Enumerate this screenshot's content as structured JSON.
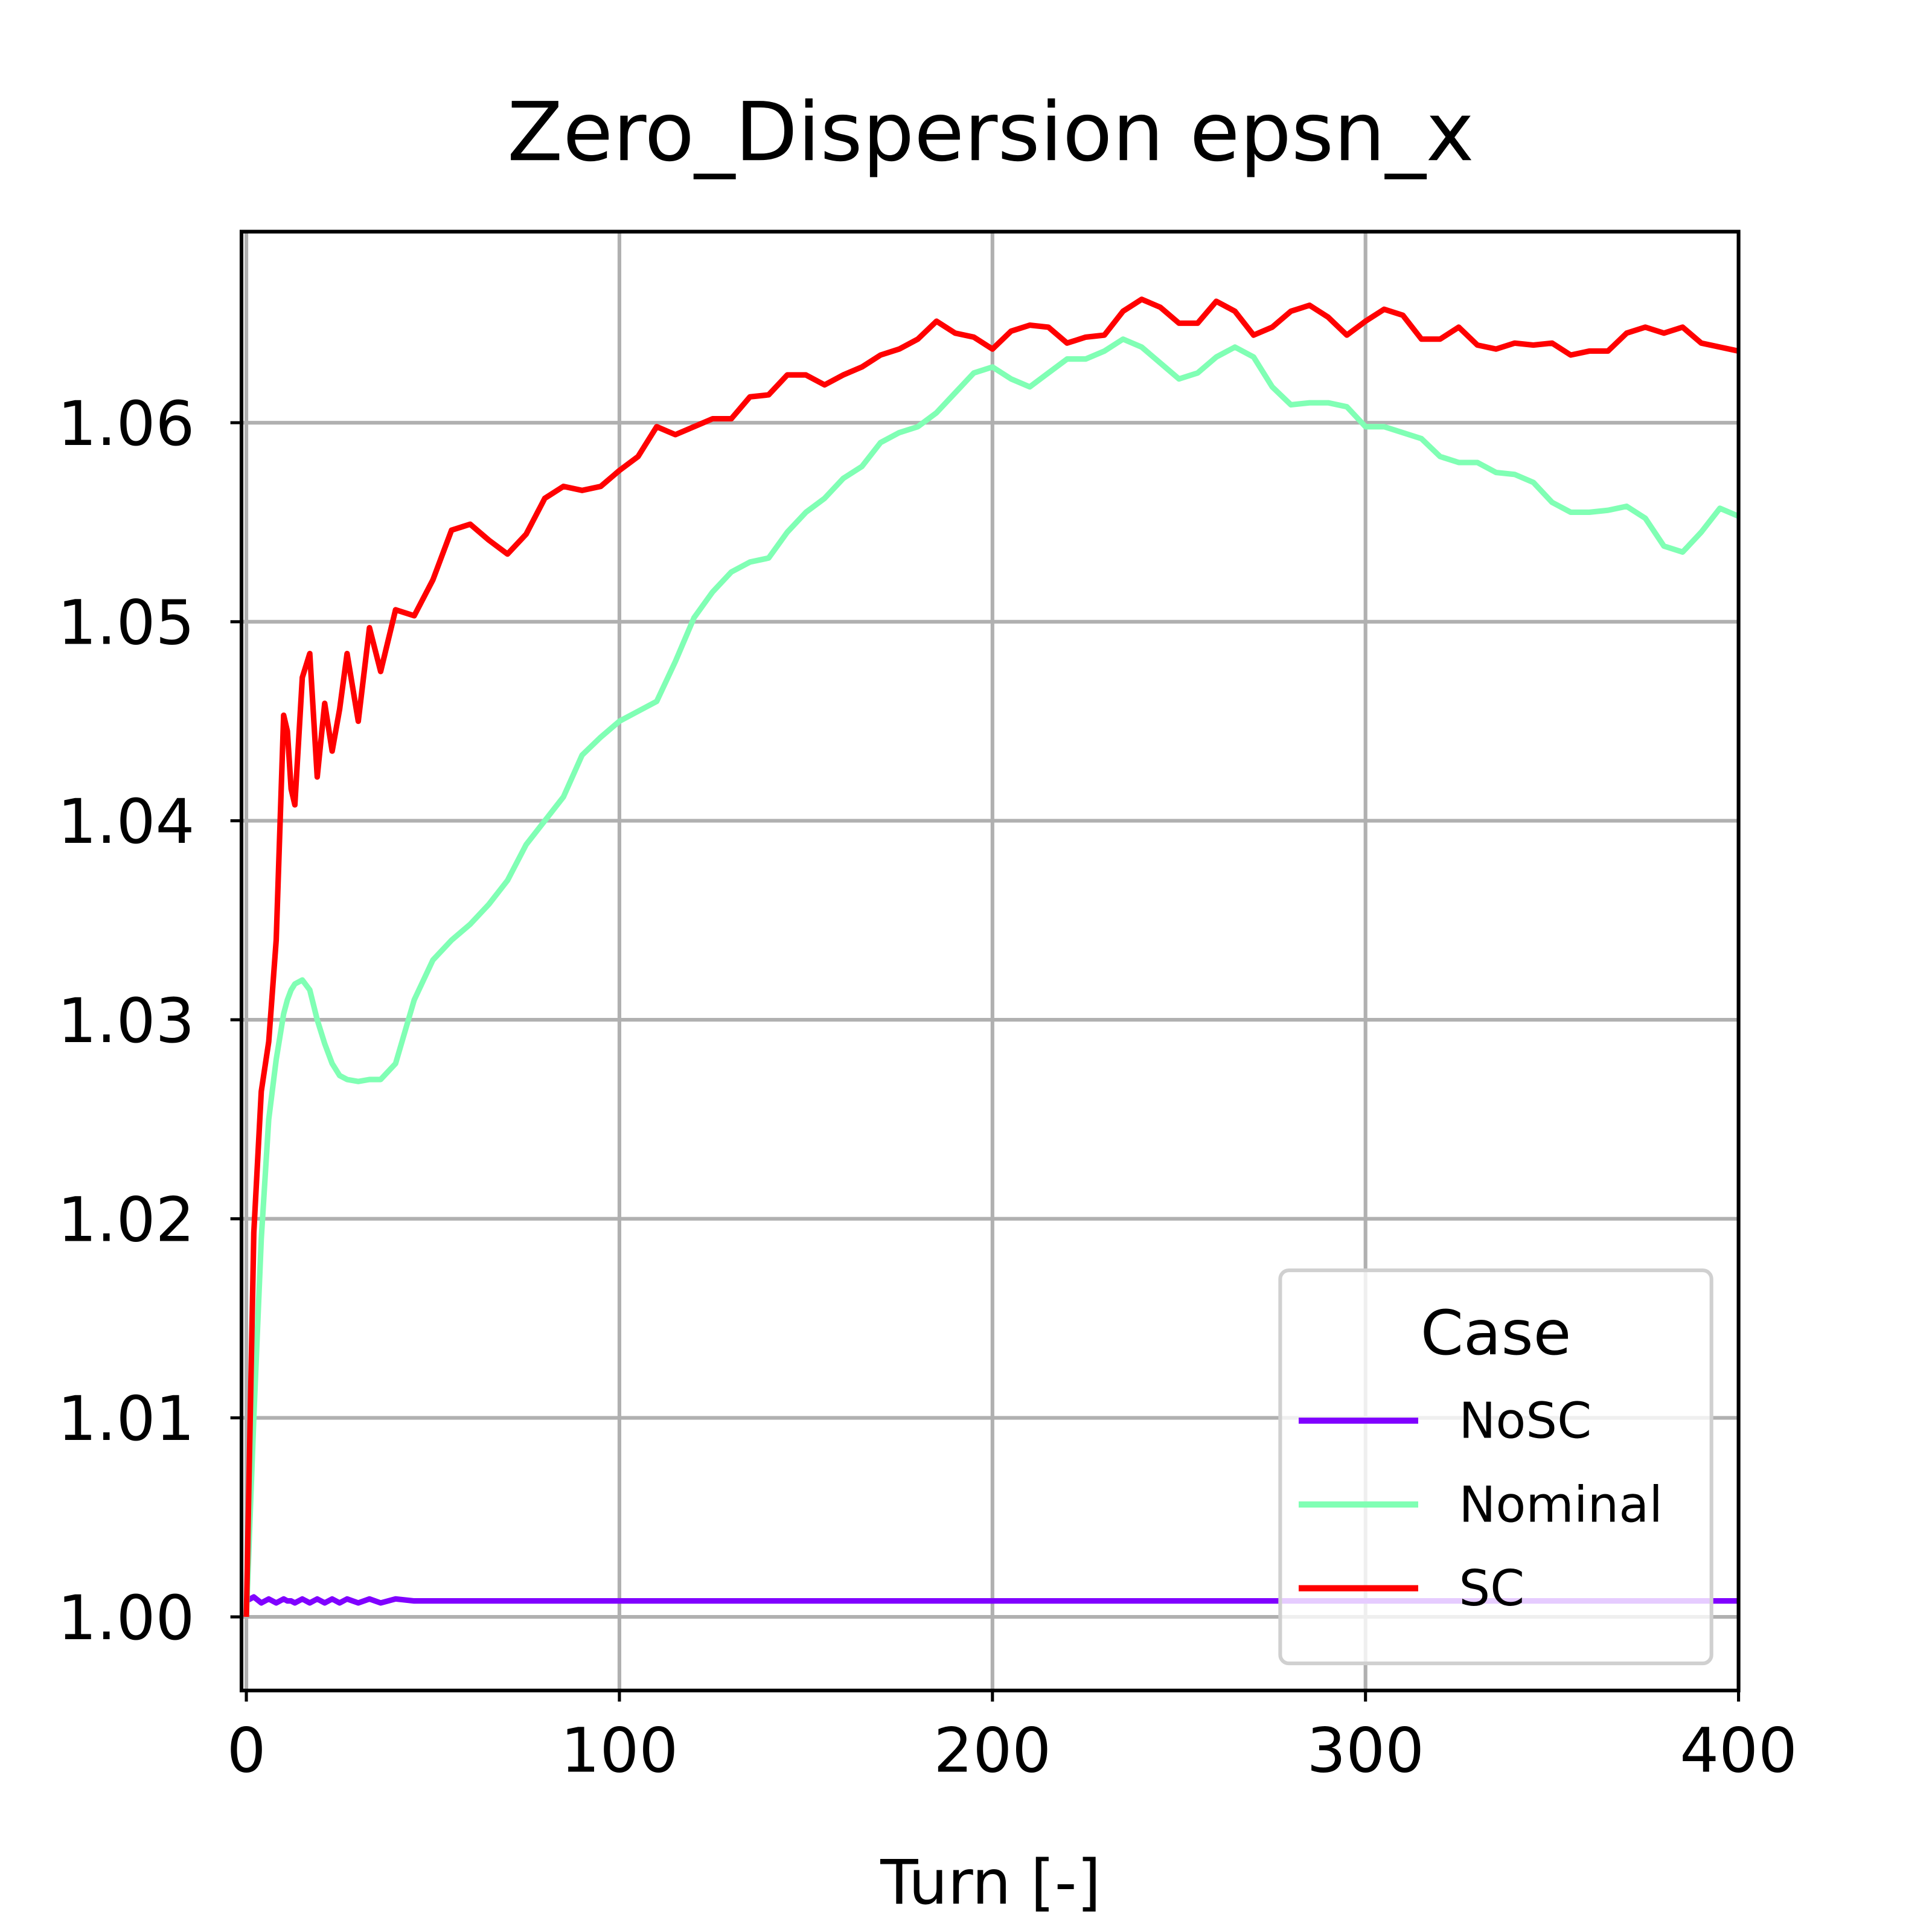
{
  "chart_data": {
    "type": "line",
    "title": "Zero_Dispersion  epsn_x",
    "x_label": "Turn [-]",
    "xlim": [
      -1.3,
      400
    ],
    "ylim": [
      0.9963,
      1.0696
    ],
    "xticks": [
      0,
      100,
      200,
      300,
      400
    ],
    "yticks": [
      {
        "value": 1,
        "label": "1.00"
      },
      1.01,
      1.02,
      1.03,
      1.04,
      1.05,
      1.06
    ],
    "grid": true,
    "legend_title": "Case",
    "legend_loc": "lower right",
    "x": [
      0,
      2,
      4,
      6,
      8,
      10,
      11,
      12,
      13,
      15,
      17,
      19,
      21,
      23,
      25,
      27,
      30,
      33,
      36,
      40,
      45,
      50,
      55,
      60,
      65,
      70,
      75,
      80,
      85,
      90,
      95,
      100,
      105,
      110,
      115,
      120,
      125,
      130,
      135,
      140,
      145,
      150,
      155,
      160,
      165,
      170,
      175,
      180,
      185,
      190,
      195,
      200,
      205,
      210,
      215,
      220,
      225,
      230,
      235,
      240,
      245,
      250,
      255,
      260,
      265,
      270,
      275,
      280,
      285,
      290,
      295,
      300,
      305,
      310,
      315,
      320,
      325,
      330,
      335,
      340,
      345,
      350,
      355,
      360,
      365,
      370,
      375,
      380,
      385,
      390,
      395,
      400
    ],
    "series": [
      {
        "name": "NoSC",
        "color": "#8000ff",
        "values": [
          1.0008,
          1.001,
          1.0007,
          1.0009,
          1.0007,
          1.0009,
          1.0008,
          1.0008,
          1.0007,
          1.0009,
          1.0007,
          1.0009,
          1.0007,
          1.0009,
          1.0007,
          1.0009,
          1.0007,
          1.0009,
          1.0007,
          1.0009,
          1.0008,
          1.0008,
          1.0008,
          1.0008,
          1.0008,
          1.0008,
          1.0008,
          1.0008,
          1.0008,
          1.0008,
          1.0008,
          1.0008,
          1.0008,
          1.0008,
          1.0008,
          1.0008,
          1.0008,
          1.0008,
          1.0008,
          1.0008,
          1.0008,
          1.0008,
          1.0008,
          1.0008,
          1.0008,
          1.0008,
          1.0008,
          1.0008,
          1.0008,
          1.0008,
          1.0008,
          1.0008,
          1.0008,
          1.0008,
          1.0008,
          1.0008,
          1.0008,
          1.0008,
          1.0008,
          1.0008,
          1.0008,
          1.0008,
          1.0008,
          1.0008,
          1.0008,
          1.0008,
          1.0008,
          1.0008,
          1.0008,
          1.0008,
          1.0008,
          1.0008,
          1.0008,
          1.0008,
          1.0008,
          1.0008,
          1.0008,
          1.0008,
          1.0008,
          1.0008,
          1.0008,
          1.0008,
          1.0008,
          1.0008,
          1.0008,
          1.0008,
          1.0008,
          1.0008,
          1.0008,
          1.0008,
          1.0008,
          1.0008
        ]
      },
      {
        "name": "Nominal",
        "color": "#80ffb4",
        "values": [
          1.0,
          1.01,
          1.019,
          1.025,
          1.028,
          1.0303,
          1.031,
          1.0315,
          1.0318,
          1.032,
          1.0315,
          1.03,
          1.0288,
          1.0278,
          1.0272,
          1.027,
          1.0269,
          1.027,
          1.027,
          1.0278,
          1.031,
          1.033,
          1.034,
          1.0348,
          1.0358,
          1.037,
          1.0388,
          1.04,
          1.0412,
          1.0433,
          1.0442,
          1.045,
          1.0455,
          1.046,
          1.048,
          1.0502,
          1.0515,
          1.0525,
          1.053,
          1.0532,
          1.0545,
          1.0555,
          1.0562,
          1.0572,
          1.0578,
          1.059,
          1.0595,
          1.0598,
          1.0605,
          1.0615,
          1.0625,
          1.0628,
          1.0622,
          1.0618,
          1.0625,
          1.0632,
          1.0632,
          1.0636,
          1.0642,
          1.0638,
          1.063,
          1.0622,
          1.0625,
          1.0633,
          1.0638,
          1.0633,
          1.0618,
          1.0609,
          1.061,
          1.061,
          1.0608,
          1.0598,
          1.0598,
          1.0595,
          1.0592,
          1.0583,
          1.058,
          1.058,
          1.0575,
          1.0574,
          1.057,
          1.056,
          1.0555,
          1.0555,
          1.0556,
          1.0558,
          1.0552,
          1.0538,
          1.0535,
          1.0545,
          1.0557,
          1.0553
        ]
      },
      {
        "name": "SC",
        "color": "#ff0000",
        "values": [
          1.0,
          1.0193,
          1.0264,
          1.0289,
          1.034,
          1.0453,
          1.0445,
          1.0416,
          1.0408,
          1.0472,
          1.0484,
          1.0422,
          1.0459,
          1.0435,
          1.0456,
          1.0484,
          1.045,
          1.0497,
          1.0475,
          1.0506,
          1.0503,
          1.0521,
          1.0546,
          1.0549,
          1.0541,
          1.0534,
          1.0544,
          1.0562,
          1.0568,
          1.0566,
          1.0568,
          1.0576,
          1.0583,
          1.0598,
          1.0594,
          1.0598,
          1.0602,
          1.0602,
          1.0613,
          1.0614,
          1.0624,
          1.0624,
          1.0619,
          1.0624,
          1.0628,
          1.0634,
          1.0637,
          1.0642,
          1.0651,
          1.0645,
          1.0643,
          1.0637,
          1.0646,
          1.0649,
          1.0648,
          1.064,
          1.0643,
          1.0644,
          1.0656,
          1.0662,
          1.0658,
          1.065,
          1.065,
          1.0661,
          1.0656,
          1.0644,
          1.0648,
          1.0656,
          1.0659,
          1.0653,
          1.0644,
          1.0651,
          1.0657,
          1.0654,
          1.0642,
          1.0642,
          1.0648,
          1.0639,
          1.0637,
          1.064,
          1.0639,
          1.064,
          1.0634,
          1.0636,
          1.0636,
          1.0645,
          1.0648,
          1.0645,
          1.0648,
          1.064,
          1.0638,
          1.0636
        ]
      }
    ]
  }
}
